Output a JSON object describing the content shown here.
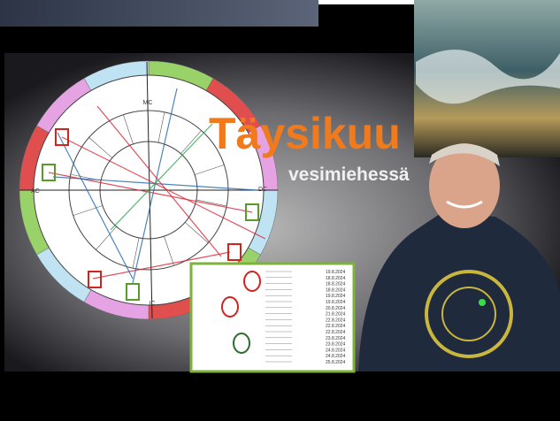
{
  "thumbnail": {
    "title": "Täysikuu",
    "subtitle": "vesimiehessä",
    "chart_labels": {
      "mc": "MC",
      "ic": "IC",
      "ac": "AC",
      "dc": "DC"
    },
    "table_dates": [
      "19.8.2024",
      "18.8.2024",
      "18.8.2024",
      "18.8.2024",
      "19.8.2024",
      "19.8.2024",
      "20.8.2024",
      "21.8.2024",
      "22.8.2024",
      "22.8.2024",
      "22.8.2024",
      "23.8.2024",
      "23.8.2024",
      "24.8.2024",
      "24.8.2024",
      "25.8.2024"
    ]
  }
}
